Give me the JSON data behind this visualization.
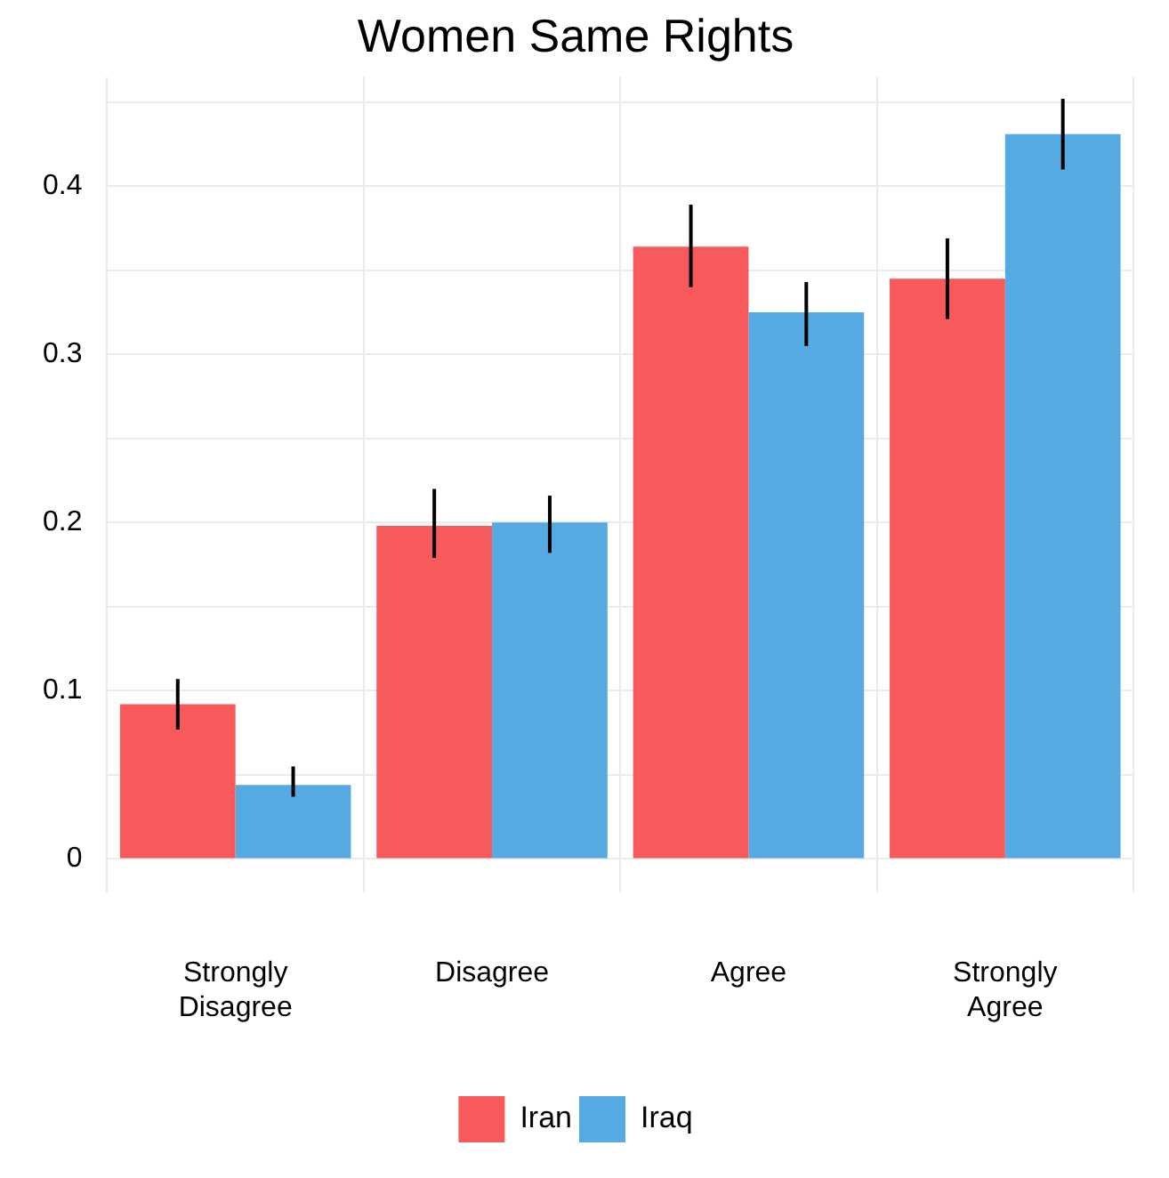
{
  "chart_data": {
    "type": "bar",
    "title": "Women Same Rights",
    "categories": [
      "Strongly Disagree",
      "Disagree",
      "Agree",
      "Strongly Agree"
    ],
    "series": [
      {
        "name": "Iran",
        "color": "#f8595a",
        "values": [
          0.092,
          0.198,
          0.364,
          0.345
        ],
        "errors": [
          [
            0.077,
            0.107
          ],
          [
            0.179,
            0.22
          ],
          [
            0.34,
            0.389
          ],
          [
            0.321,
            0.369
          ]
        ]
      },
      {
        "name": "Iraq",
        "color": "#56aae2",
        "values": [
          0.044,
          0.2,
          0.325,
          0.431
        ],
        "errors": [
          [
            0.037,
            0.055
          ],
          [
            0.182,
            0.216
          ],
          [
            0.305,
            0.343
          ],
          [
            0.41,
            0.452
          ]
        ]
      }
    ],
    "ylim": [
      -0.02,
      0.465
    ],
    "yticks": [
      0,
      {
        "value": 0.05,
        "label": null
      },
      0.1,
      {
        "value": 0.15,
        "label": null
      },
      0.2,
      {
        "value": 0.25,
        "label": null
      },
      0.3,
      {
        "value": 0.35,
        "label": null
      },
      0.4,
      {
        "value": 0.45,
        "label": null
      }
    ],
    "grid": true,
    "legend": "bottom"
  }
}
